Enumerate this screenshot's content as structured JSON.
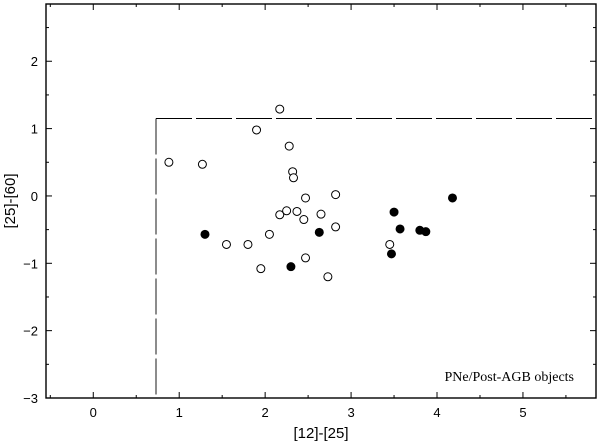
{
  "chart_data": {
    "type": "scatter",
    "title": "",
    "xlabel": "[12]-[25]",
    "ylabel": "[25]-[60]",
    "xlim": [
      -0.55,
      5.85
    ],
    "ylim": [
      -3.0,
      2.85
    ],
    "xticks": [
      0,
      1,
      2,
      3,
      4,
      5
    ],
    "yticks": [
      -3,
      -2,
      -1,
      0,
      1,
      2
    ],
    "grid": false,
    "annotation": "PNe/Post-AGB objects",
    "region_box": {
      "x_min": 0.73,
      "y_max": 1.15,
      "style": "dashed",
      "open_right": true,
      "open_bottom": true
    },
    "series": [
      {
        "marker": "open-circle",
        "points": [
          {
            "x": 0.88,
            "y": 0.5
          },
          {
            "x": 1.27,
            "y": 0.47
          },
          {
            "x": 1.55,
            "y": -0.72
          },
          {
            "x": 1.8,
            "y": -0.72
          },
          {
            "x": 1.9,
            "y": 0.98
          },
          {
            "x": 1.95,
            "y": -1.08
          },
          {
            "x": 2.05,
            "y": -0.57
          },
          {
            "x": 2.17,
            "y": 1.29
          },
          {
            "x": 2.17,
            "y": -0.28
          },
          {
            "x": 2.25,
            "y": -0.22
          },
          {
            "x": 2.28,
            "y": 0.74
          },
          {
            "x": 2.32,
            "y": 0.36
          },
          {
            "x": 2.33,
            "y": 0.27
          },
          {
            "x": 2.37,
            "y": -0.23
          },
          {
            "x": 2.45,
            "y": -0.35
          },
          {
            "x": 2.47,
            "y": -0.03
          },
          {
            "x": 2.47,
            "y": -0.92
          },
          {
            "x": 2.65,
            "y": -0.27
          },
          {
            "x": 2.73,
            "y": -1.2
          },
          {
            "x": 2.82,
            "y": 0.02
          },
          {
            "x": 2.82,
            "y": -0.46
          },
          {
            "x": 3.45,
            "y": -0.72
          }
        ]
      },
      {
        "marker": "filled-circle",
        "points": [
          {
            "x": 1.3,
            "y": -0.57
          },
          {
            "x": 2.3,
            "y": -1.05
          },
          {
            "x": 2.63,
            "y": -0.54
          },
          {
            "x": 3.47,
            "y": -0.86
          },
          {
            "x": 3.5,
            "y": -0.24
          },
          {
            "x": 3.57,
            "y": -0.49
          },
          {
            "x": 3.8,
            "y": -0.51
          },
          {
            "x": 3.87,
            "y": -0.53
          },
          {
            "x": 4.18,
            "y": -0.03
          }
        ]
      }
    ]
  }
}
